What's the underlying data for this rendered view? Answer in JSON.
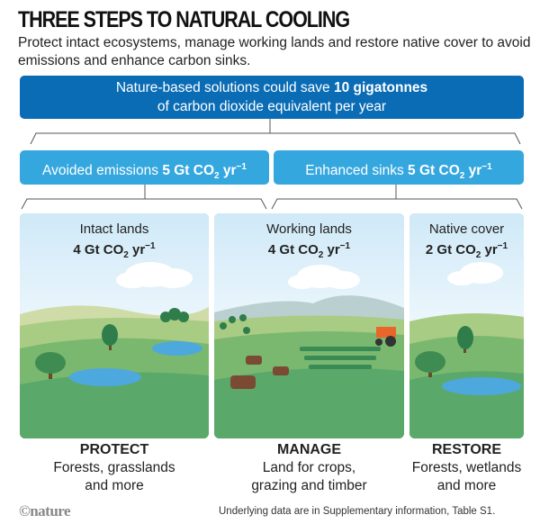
{
  "title": "THREE STEPS TO NATURAL COOLING",
  "subtitle": "Protect intact ecosystems, manage working lands and restore native cover to avoid emissions and enhance carbon sinks.",
  "top_box": {
    "line1": "Nature-based solutions could save ",
    "line1_bold": "10 gigatonnes",
    "line2": "of carbon dioxide equivalent per year"
  },
  "categories": [
    {
      "label": "Avoided emissions ",
      "value": "5 Gt CO",
      "sub": "2",
      "unit": " yr",
      "sup": "−1"
    },
    {
      "label": "Enhanced sinks ",
      "value": "5 Gt CO",
      "sub": "2",
      "unit": " yr",
      "sup": "−1"
    }
  ],
  "panels": [
    {
      "name": "Intact lands",
      "value": "4 Gt CO",
      "sub": "2",
      "unit": " yr",
      "sup": "−1",
      "action": "PROTECT",
      "desc1": "Forests, grasslands",
      "desc2": "and more"
    },
    {
      "name": "Working lands",
      "value": "4 Gt CO",
      "sub": "2",
      "unit": " yr",
      "sup": "−1",
      "action": "MANAGE",
      "desc1": "Land for crops,",
      "desc2": "grazing and timber"
    },
    {
      "name": "Native cover",
      "value": "2 Gt CO",
      "sub": "2",
      "unit": " yr",
      "sup": "−1",
      "action": "RESTORE",
      "desc1": "Forests, wetlands",
      "desc2": "and more"
    }
  ],
  "logo": "©nature",
  "note": "Underlying data are in Supplementary information, Table S1.",
  "colors": {
    "dark_blue": "#0a6cb4",
    "light_blue": "#35a7df",
    "sky": "#d8eef9",
    "grass": "#5aa96a",
    "water": "#4da8de",
    "tractor": "#e8662a"
  }
}
